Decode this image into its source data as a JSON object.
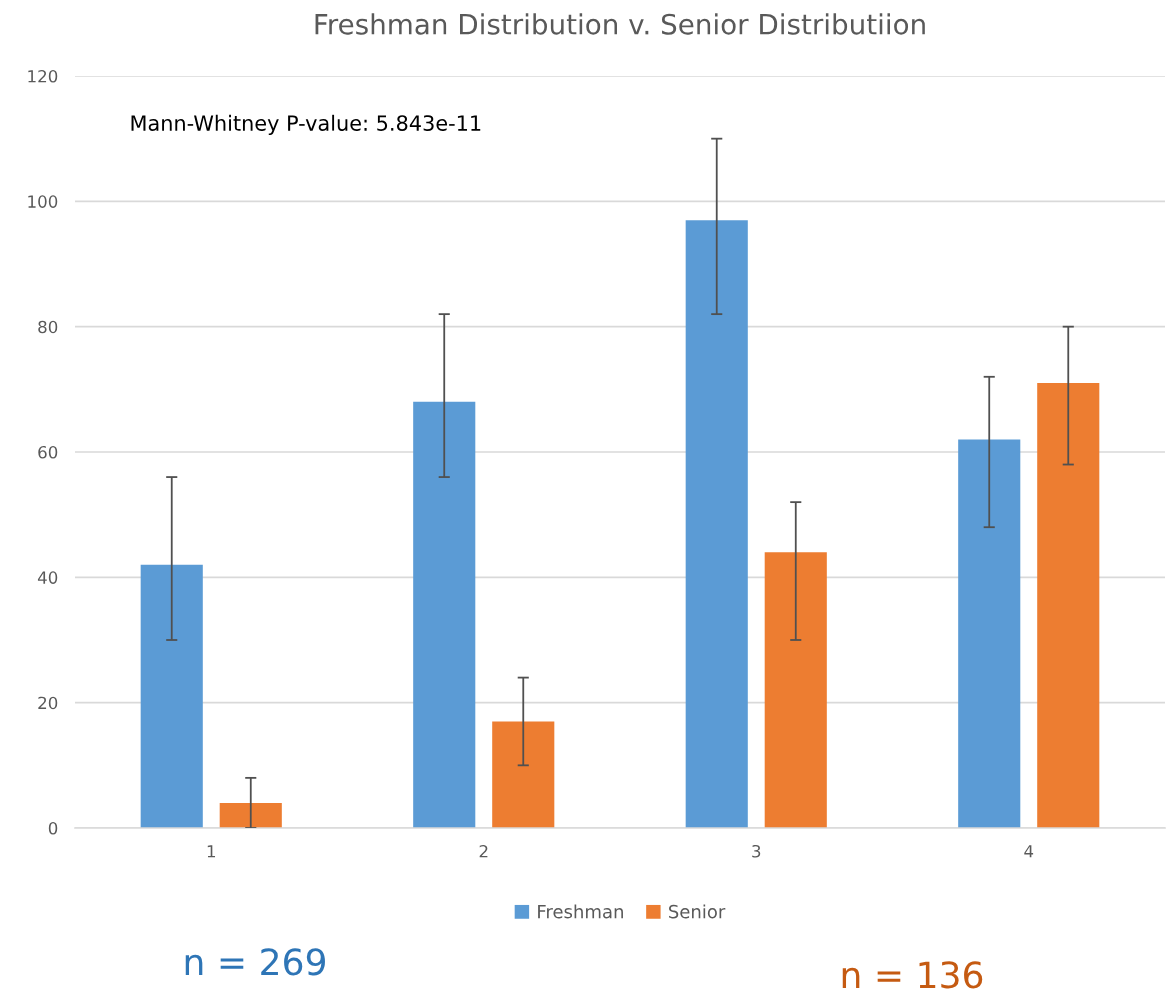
{
  "chart_data": {
    "type": "bar",
    "title": "Freshman Distribution v. Senior Distributiion",
    "categories": [
      "1",
      "2",
      "3",
      "4"
    ],
    "series": [
      {
        "name": "Freshman",
        "color": "#5b9bd5",
        "values": [
          42,
          68,
          97,
          62
        ],
        "errors": [
          [
            30,
            56
          ],
          [
            56,
            82
          ],
          [
            82,
            110
          ],
          [
            48,
            72
          ]
        ]
      },
      {
        "name": "Senior",
        "color": "#ed7d31",
        "values": [
          4,
          17,
          44,
          71
        ],
        "errors": [
          [
            0,
            8
          ],
          [
            10,
            24
          ],
          [
            30,
            52
          ],
          [
            58,
            80
          ]
        ]
      }
    ],
    "ylim": [
      0,
      120
    ],
    "yticks": [
      0,
      20,
      40,
      60,
      80,
      100,
      120
    ],
    "grid": "y",
    "legend": "bottom",
    "annotations": [
      "Mann-Whitney P-value: 5.843e-11",
      "n = 269",
      "n = 136"
    ]
  }
}
